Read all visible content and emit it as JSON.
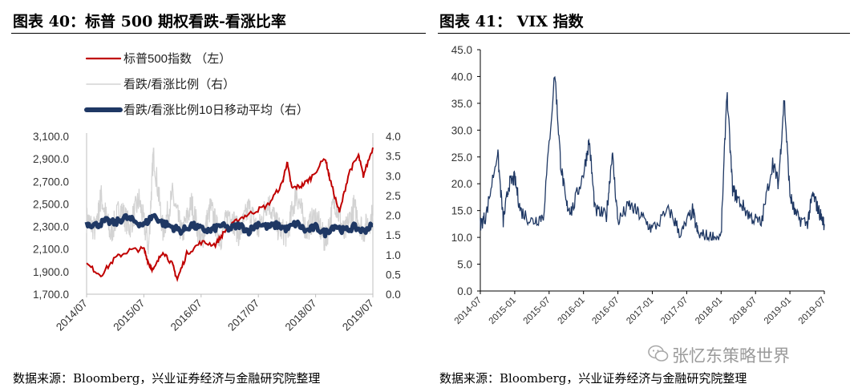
{
  "left_panel": {
    "title": "图表 40：标普 500 期权看跌-看涨比率",
    "source": "数据来源：Bloomberg，兴业证券经济与金融研究院整理"
  },
  "right_panel": {
    "title": "图表 41：  VIX 指数",
    "source": "数据来源：Bloomberg，兴业证券经济与金融研究院整理"
  },
  "watermark": {
    "text": "张忆东策略世界",
    "icon": "wechat-icon"
  },
  "colors": {
    "sp500": "#c00000",
    "pcr": "#d3d3d3",
    "pcr_ma": "#1f3864",
    "vix": "#1f3864"
  },
  "chart_data": [
    {
      "type": "line",
      "title": "",
      "legend": [
        "标普500指数  （左）",
        "看跌/看涨比例（右）",
        "看跌/看涨比例10日移动平均（右）"
      ],
      "legend_position": "top-left",
      "grid": false,
      "x_tick_labels": [
        "2014/07",
        "2015/07",
        "2016/07",
        "2017/07",
        "2018/07",
        "2019/07"
      ],
      "xlim": [
        "2014-07",
        "2019-07"
      ],
      "y_left": {
        "ticks": [
          "1,700.0",
          "1,900.0",
          "2,100.0",
          "2,300.0",
          "2,500.0",
          "2,700.0",
          "2,900.0",
          "3,100.0"
        ],
        "ylim": [
          1700,
          3100
        ]
      },
      "y_right": {
        "ticks": [
          "0.0",
          "0.5",
          "1.0",
          "1.5",
          "2.0",
          "2.5",
          "3.0",
          "3.5",
          "4.0"
        ],
        "ylim": [
          0,
          4
        ]
      },
      "series": [
        {
          "name": "标普500指数  （左）",
          "axis": "left",
          "x": [
            "2014-07",
            "2014-10",
            "2015-01",
            "2015-04",
            "2015-07",
            "2015-08",
            "2015-09",
            "2015-11",
            "2016-01",
            "2016-02",
            "2016-04",
            "2016-07",
            "2016-10",
            "2016-12",
            "2017-03",
            "2017-06",
            "2017-09",
            "2017-12",
            "2018-01",
            "2018-02",
            "2018-04",
            "2018-06",
            "2018-09",
            "2018-10",
            "2018-12",
            "2019-02",
            "2019-04",
            "2019-05",
            "2019-07"
          ],
          "y": [
            1965,
            1870,
            2020,
            2090,
            2100,
            1975,
            1910,
            2085,
            1960,
            1830,
            2060,
            2160,
            2140,
            2260,
            2370,
            2430,
            2490,
            2680,
            2870,
            2640,
            2660,
            2730,
            2910,
            2720,
            2420,
            2780,
            2930,
            2750,
            3000
          ]
        },
        {
          "name": "看跌/看涨比例（右）",
          "axis": "right",
          "x": [
            "2014-07",
            "2014-09",
            "2014-10",
            "2014-12",
            "2015-02",
            "2015-04",
            "2015-06",
            "2015-08",
            "2015-09",
            "2015-11",
            "2016-01",
            "2016-03",
            "2016-05",
            "2016-07",
            "2016-09",
            "2016-11",
            "2017-01",
            "2017-03",
            "2017-05",
            "2017-07",
            "2017-09",
            "2017-11",
            "2018-01",
            "2018-03",
            "2018-05",
            "2018-07",
            "2018-09",
            "2018-11",
            "2019-01",
            "2019-03",
            "2019-05",
            "2019-07"
          ],
          "y": [
            1.9,
            1.6,
            2.5,
            1.5,
            2.2,
            1.7,
            2.4,
            1.2,
            3.6,
            1.6,
            2.5,
            1.5,
            2.3,
            1.3,
            2.2,
            1.4,
            2.1,
            1.5,
            2.2,
            1.6,
            2.4,
            1.7,
            1.5,
            2.6,
            1.6,
            2.0,
            1.3,
            2.4,
            1.5,
            2.2,
            1.6,
            2.0
          ]
        },
        {
          "name": "看跌/看涨比例10日移动平均（右）",
          "axis": "right",
          "x": [
            "2014-07",
            "2014-09",
            "2014-11",
            "2015-01",
            "2015-03",
            "2015-05",
            "2015-07",
            "2015-09",
            "2015-11",
            "2016-01",
            "2016-03",
            "2016-05",
            "2016-07",
            "2016-09",
            "2016-11",
            "2017-01",
            "2017-03",
            "2017-05",
            "2017-07",
            "2017-09",
            "2017-11",
            "2018-01",
            "2018-03",
            "2018-05",
            "2018-07",
            "2018-09",
            "2018-11",
            "2019-01",
            "2019-03",
            "2019-05",
            "2019-07"
          ],
          "y": [
            1.8,
            1.75,
            1.85,
            1.8,
            1.95,
            1.85,
            1.75,
            2.0,
            1.8,
            1.7,
            1.6,
            1.75,
            1.65,
            1.6,
            1.75,
            1.65,
            1.75,
            1.6,
            1.8,
            1.7,
            1.75,
            1.65,
            1.8,
            1.6,
            1.7,
            1.55,
            1.75,
            1.6,
            1.7,
            1.6,
            1.75
          ]
        }
      ]
    },
    {
      "type": "line",
      "title": "",
      "legend": [],
      "grid": false,
      "x_tick_labels": [
        "2014-07",
        "2015-01",
        "2015-07",
        "2016-01",
        "2016-07",
        "2017-01",
        "2017-07",
        "2018-01",
        "2018-07",
        "2019-01",
        "2019-07"
      ],
      "xlim": [
        "2014-07",
        "2019-07"
      ],
      "y_tick_labels": [
        "0.0",
        "5.0",
        "10.0",
        "15.0",
        "20.0",
        "25.0",
        "30.0",
        "35.0",
        "40.0",
        "45.0"
      ],
      "ylim": [
        0,
        45
      ],
      "series": [
        {
          "name": "",
          "x": [
            "2014-07",
            "2014-08",
            "2014-10",
            "2014-11",
            "2014-12",
            "2015-01",
            "2015-02",
            "2015-04",
            "2015-06",
            "2015-08",
            "2015-09",
            "2015-10",
            "2015-11",
            "2016-01",
            "2016-02",
            "2016-03",
            "2016-05",
            "2016-06",
            "2016-07",
            "2016-09",
            "2016-11",
            "2017-01",
            "2017-04",
            "2017-06",
            "2017-08",
            "2017-09",
            "2017-11",
            "2018-01",
            "2018-02",
            "2018-03",
            "2018-04",
            "2018-06",
            "2018-08",
            "2018-10",
            "2018-11",
            "2018-12",
            "2019-01",
            "2019-02",
            "2019-04",
            "2019-05",
            "2019-06",
            "2019-07"
          ],
          "y": [
            12.5,
            14,
            26,
            13,
            20,
            21,
            15,
            13,
            14,
            40.7,
            24,
            16,
            15,
            22,
            28,
            15,
            14,
            25.8,
            13,
            16,
            14,
            11.5,
            15,
            10.5,
            15,
            10.5,
            10,
            10,
            37.3,
            19,
            17,
            14,
            12.5,
            24,
            20,
            36,
            18,
            14,
            12.5,
            18,
            15,
            12.5
          ]
        }
      ]
    }
  ]
}
